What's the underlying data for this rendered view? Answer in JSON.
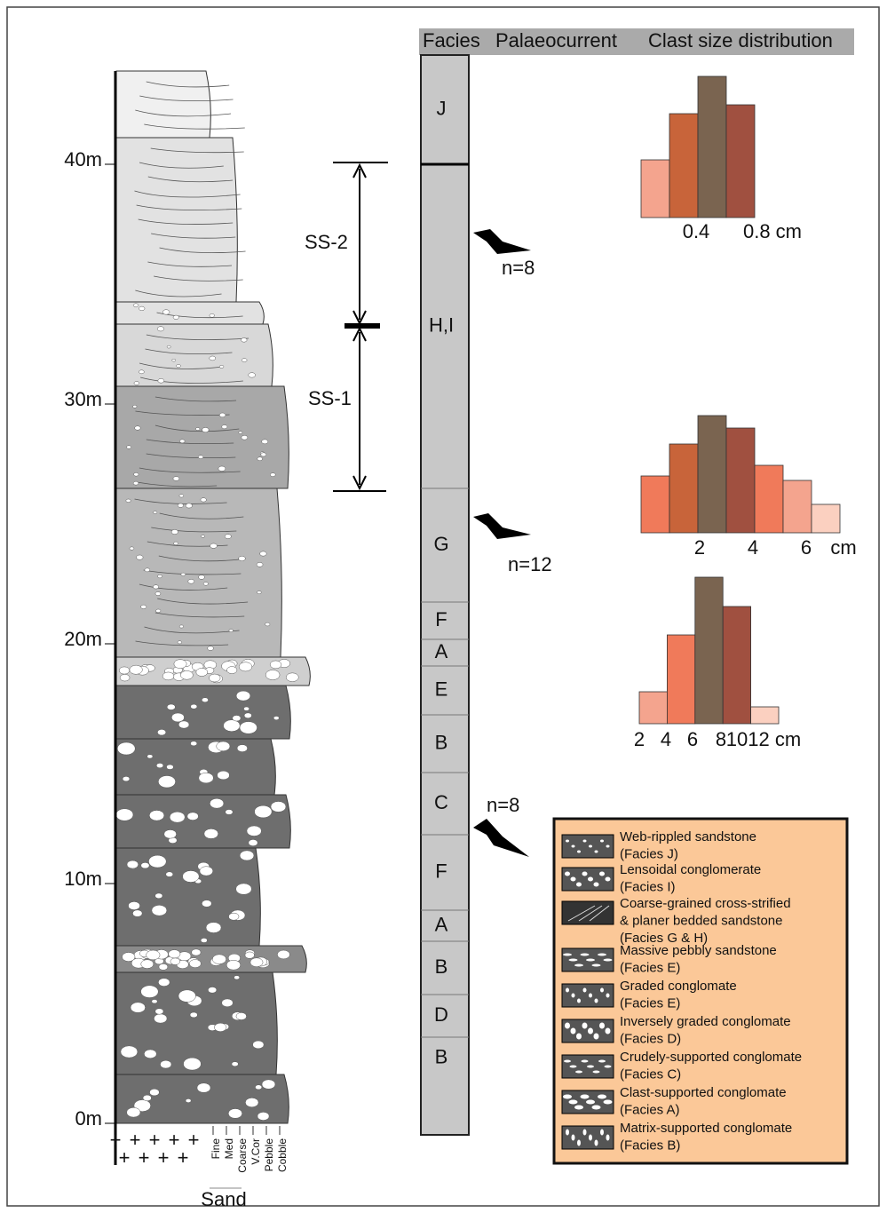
{
  "column": {
    "depth_ticks": [
      {
        "value": 0,
        "label": "0m"
      },
      {
        "value": 10,
        "label": "10m"
      },
      {
        "value": 20,
        "label": "20m"
      },
      {
        "value": 30,
        "label": "30m"
      },
      {
        "value": 40,
        "label": "40m"
      }
    ],
    "grain_size": [
      "Fine",
      "Med",
      "Coarse",
      "V.Cor",
      "Pebble",
      "Cobble"
    ],
    "sand_label": "Sand",
    "sequences": [
      "SS-2",
      "SS-1"
    ]
  },
  "header": {
    "facies": "Facies",
    "palaeocurrent": "Palaeocurrent",
    "clast": "Clast size distribution"
  },
  "facies": [
    "J",
    "H,I",
    "G",
    "F",
    "A",
    "E",
    "B",
    "C",
    "F",
    "A",
    "B",
    "D",
    "B"
  ],
  "palaeocurrents": [
    "n=8",
    "n=12",
    "n=8"
  ],
  "histograms": [
    {
      "bars": [
        65,
        117,
        159,
        127
      ],
      "colors": [
        "#f4a48e",
        "#c8643a",
        "#7a6450",
        "#a05040"
      ],
      "labels": [
        "0.4",
        "0.8 cm"
      ]
    },
    {
      "bars": [
        64,
        100,
        132,
        118,
        76,
        59,
        32
      ],
      "colors": [
        "#f07a5a",
        "#c8643a",
        "#7a6450",
        "#a05040",
        "#f07a5a",
        "#f4a48e",
        "#fbd0c0"
      ],
      "labels": [
        "2",
        "4",
        "6",
        "cm"
      ]
    },
    {
      "bars": [
        36,
        100,
        165,
        132,
        19
      ],
      "colors": [
        "#f4a48e",
        "#f07a5a",
        "#7a6450",
        "#a05040",
        "#fbd0c0"
      ],
      "labels": [
        "2",
        "4",
        "6",
        "8",
        "1012 cm"
      ]
    }
  ],
  "legend": [
    [
      "Web-rippled sandstone",
      "(Facies J)"
    ],
    [
      "Lensoidal conglomerate",
      "(Facies I)"
    ],
    [
      "Coarse-grained cross-strified",
      "& planer bedded sandstone",
      "(Facies G & H)"
    ],
    [
      "Massive pebbly sandstone",
      "(Facies E)"
    ],
    [
      "Graded conglomate",
      "(Facies E)"
    ],
    [
      "Inversely graded conglomate",
      "(Facies D)"
    ],
    [
      "Crudely-supported conglomate",
      "(Facies C)"
    ],
    [
      "Clast-supported conglomate",
      "(Facies A)"
    ],
    [
      "Matrix-supported conglomate",
      "(Facies B)"
    ]
  ]
}
